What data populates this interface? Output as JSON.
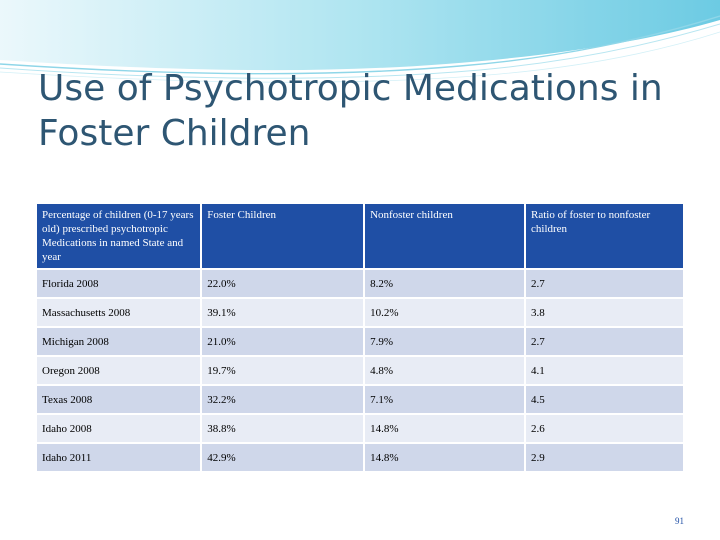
{
  "slide": {
    "title": "Use of Psychotropic Medications in Foster Children",
    "page_number": "91"
  },
  "colors": {
    "title": "#2e5673",
    "header_bg": "#1f4fa5",
    "row_dark": "#cfd7ea",
    "row_light": "#e8ecf5",
    "wave": "#7fd3e6"
  },
  "table": {
    "headers": [
      "Percentage of children (0-17 years old) prescribed psychotropic Medications in named State and year",
      "Foster Children",
      "Nonfoster children",
      "Ratio of foster to nonfoster children"
    ],
    "rows": [
      [
        "Florida 2008",
        "22.0%",
        "8.2%",
        "2.7"
      ],
      [
        "Massachusetts 2008",
        "39.1%",
        "10.2%",
        "3.8"
      ],
      [
        "Michigan 2008",
        "21.0%",
        "7.9%",
        "2.7"
      ],
      [
        "Oregon 2008",
        "19.7%",
        "4.8%",
        "4.1"
      ],
      [
        "Texas 2008",
        "32.2%",
        "7.1%",
        "4.5"
      ],
      [
        "Idaho 2008",
        "38.8%",
        "14.8%",
        "2.6"
      ],
      [
        "Idaho 2011",
        "42.9%",
        "14.8%",
        "2.9"
      ]
    ]
  }
}
